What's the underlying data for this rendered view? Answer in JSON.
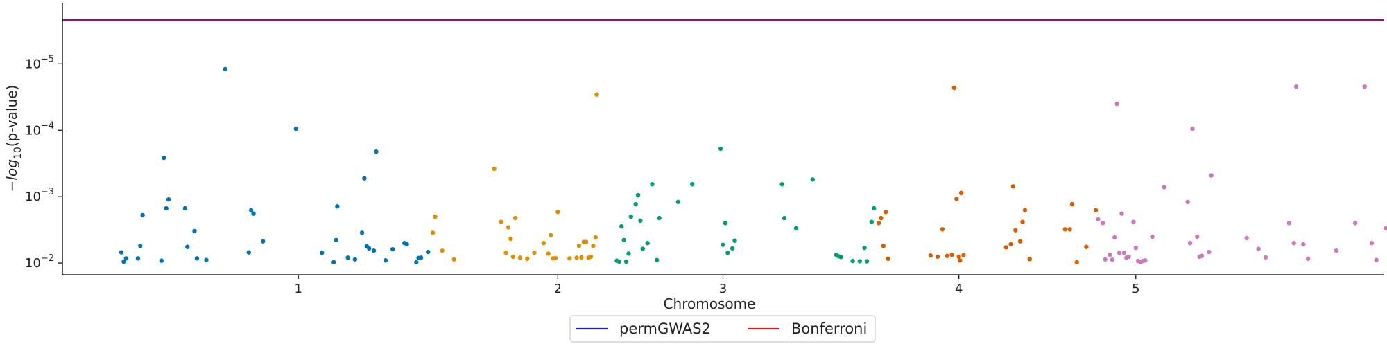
{
  "chart_data": {
    "type": "scatter",
    "title": "",
    "xlabel": "Chromosome",
    "ylabel": {
      "prefix": "−log",
      "subscript": "10",
      "suffix": "(p-value)"
    },
    "y_scale": "log",
    "y_inverted": true,
    "ylim": [
      0.015,
      1.2e-06
    ],
    "yticks": [
      {
        "value": 0.01,
        "base": "10",
        "exp": "−2"
      },
      {
        "value": 0.001,
        "base": "10",
        "exp": "−3"
      },
      {
        "value": 0.0001,
        "base": "10",
        "exp": "−4"
      },
      {
        "value": 1e-05,
        "base": "10",
        "exp": "−5"
      }
    ],
    "xlim": [
      0,
      5.6
    ],
    "xticks": [
      {
        "value": 1.0,
        "label": "1"
      },
      {
        "value": 2.1,
        "label": "2"
      },
      {
        "value": 2.8,
        "label": "3"
      },
      {
        "value": 3.8,
        "label": "4"
      },
      {
        "value": 4.55,
        "label": "5"
      }
    ],
    "grid": false,
    "legend_placement": "bottom-center",
    "thresholds": [
      {
        "name": "permGWAS2",
        "value": 2.2e-06,
        "color": "#1a1adf"
      },
      {
        "name": "Bonferroni",
        "value": 2.2e-06,
        "color": "#e01515"
      }
    ],
    "series": [
      {
        "chromosome": "1",
        "color": "#0173b2",
        "points": [
          [
            0.25,
            0.0069
          ],
          [
            0.26,
            0.0095
          ],
          [
            0.27,
            0.0085
          ],
          [
            0.32,
            0.0085
          ],
          [
            0.33,
            0.0055
          ],
          [
            0.34,
            0.0019
          ],
          [
            0.42,
            0.0092
          ],
          [
            0.43,
            0.00026
          ],
          [
            0.44,
            0.0015
          ],
          [
            0.45,
            0.0011
          ],
          [
            0.52,
            0.0015
          ],
          [
            0.53,
            0.0057
          ],
          [
            0.56,
            0.0033
          ],
          [
            0.57,
            0.0085
          ],
          [
            0.61,
            0.009
          ],
          [
            0.69,
            1.2e-05
          ],
          [
            0.79,
            0.0069
          ],
          [
            0.8,
            0.0016
          ],
          [
            0.81,
            0.0018
          ],
          [
            0.85,
            0.0047
          ],
          [
            0.99,
            9.5e-05
          ],
          [
            1.1,
            0.007
          ],
          [
            1.15,
            0.0097
          ],
          [
            1.16,
            0.0045
          ],
          [
            1.165,
            0.0014
          ],
          [
            1.21,
            0.0083
          ],
          [
            1.24,
            0.0088
          ],
          [
            1.27,
            0.0035
          ],
          [
            1.28,
            0.00053
          ],
          [
            1.29,
            0.0056
          ],
          [
            1.3,
            0.006
          ],
          [
            1.32,
            0.0065
          ],
          [
            1.33,
            0.00021
          ],
          [
            1.37,
            0.0091
          ],
          [
            1.4,
            0.0062
          ],
          [
            1.45,
            0.005
          ],
          [
            1.46,
            0.0052
          ],
          [
            1.5,
            0.0097
          ],
          [
            1.51,
            0.0084
          ],
          [
            1.52,
            0.0083
          ],
          [
            1.55,
            0.0068
          ]
        ]
      },
      {
        "chromosome": "2",
        "color": "#de8f05",
        "points": [
          [
            1.57,
            0.0035
          ],
          [
            1.58,
            0.002
          ],
          [
            1.61,
            0.0065
          ],
          [
            1.66,
            0.0088
          ],
          [
            1.83,
            0.00038
          ],
          [
            1.86,
            0.0024
          ],
          [
            1.88,
            0.007
          ],
          [
            1.89,
            0.0029
          ],
          [
            1.9,
            0.0043
          ],
          [
            1.91,
            0.008
          ],
          [
            1.92,
            0.0021
          ],
          [
            1.94,
            0.0083
          ],
          [
            1.97,
            0.0086
          ],
          [
            2.0,
            0.007
          ],
          [
            2.04,
            0.005
          ],
          [
            2.06,
            0.0072
          ],
          [
            2.07,
            0.0038
          ],
          [
            2.08,
            0.0085
          ],
          [
            2.09,
            0.0084
          ],
          [
            2.1,
            0.0017
          ],
          [
            2.15,
            0.0085
          ],
          [
            2.18,
            0.0083
          ],
          [
            2.19,
            0.0055
          ],
          [
            2.2,
            0.0082
          ],
          [
            2.21,
            0.0048
          ],
          [
            2.22,
            0.0048
          ],
          [
            2.23,
            0.0083
          ],
          [
            2.24,
            0.008
          ],
          [
            2.25,
            0.0055
          ],
          [
            2.26,
            0.0041
          ],
          [
            2.265,
            2.9e-05
          ]
        ]
      },
      {
        "chromosome": "3",
        "color": "#029e73",
        "points": [
          [
            2.35,
            0.0092
          ],
          [
            2.36,
            0.0095
          ],
          [
            2.37,
            0.0028
          ],
          [
            2.38,
            0.0045
          ],
          [
            2.39,
            0.0095
          ],
          [
            2.4,
            0.0072
          ],
          [
            2.41,
            0.002
          ],
          [
            2.43,
            0.0013
          ],
          [
            2.44,
            0.00095
          ],
          [
            2.45,
            0.0023
          ],
          [
            2.46,
            0.0061
          ],
          [
            2.48,
            0.005
          ],
          [
            2.5,
            0.00065
          ],
          [
            2.52,
            0.009
          ],
          [
            2.53,
            0.0021
          ],
          [
            2.61,
            0.0012
          ],
          [
            2.67,
            0.00065
          ],
          [
            2.79,
            0.00019
          ],
          [
            2.8,
            0.0053
          ],
          [
            2.81,
            0.0025
          ],
          [
            2.82,
            0.007
          ],
          [
            2.84,
            0.006
          ],
          [
            2.85,
            0.0046
          ],
          [
            3.05,
            0.00065
          ],
          [
            3.06,
            0.0021
          ],
          [
            3.11,
            0.003
          ],
          [
            3.18,
            0.00055
          ],
          [
            3.28,
            0.0075
          ],
          [
            3.29,
            0.0079
          ],
          [
            3.3,
            0.0081
          ],
          [
            3.35,
            0.0093
          ],
          [
            3.38,
            0.0094
          ],
          [
            3.4,
            0.0059
          ],
          [
            3.41,
            0.0094
          ],
          [
            3.43,
            0.0024
          ],
          [
            3.44,
            0.0015
          ]
        ]
      },
      {
        "chromosome": "4",
        "color": "#d55e00",
        "points": [
          [
            3.46,
            0.0025
          ],
          [
            3.47,
            0.0021
          ],
          [
            3.48,
            0.0055
          ],
          [
            3.49,
            0.0017
          ],
          [
            3.5,
            0.0086
          ],
          [
            3.68,
            0.0077
          ],
          [
            3.71,
            0.008
          ],
          [
            3.73,
            0.0031
          ],
          [
            3.75,
            0.0078
          ],
          [
            3.77,
            0.0075
          ],
          [
            3.78,
            2.3e-05
          ],
          [
            3.79,
            0.00108
          ],
          [
            3.8,
            0.008
          ],
          [
            3.805,
            0.0091
          ],
          [
            3.81,
            0.00088
          ],
          [
            3.82,
            0.0076
          ],
          [
            4.0,
            0.0058
          ],
          [
            4.02,
            0.0052
          ],
          [
            4.03,
            0.0007
          ],
          [
            4.04,
            0.0032
          ],
          [
            4.06,
            0.0047
          ],
          [
            4.07,
            0.0024
          ],
          [
            4.08,
            0.0016
          ],
          [
            4.1,
            0.0087
          ],
          [
            4.25,
            0.0031
          ],
          [
            4.27,
            0.0031
          ],
          [
            4.28,
            0.0013
          ],
          [
            4.3,
            0.0097
          ],
          [
            4.34,
            0.0057
          ],
          [
            4.38,
            0.0016
          ]
        ]
      },
      {
        "chromosome": "5",
        "color": "#cc78bc",
        "points": [
          [
            4.39,
            0.0022
          ],
          [
            4.41,
            0.0025
          ],
          [
            4.42,
            0.0088
          ],
          [
            4.44,
            0.0075
          ],
          [
            4.45,
            0.0089
          ],
          [
            4.46,
            0.0041
          ],
          [
            4.47,
            4e-05
          ],
          [
            4.48,
            0.007
          ],
          [
            4.49,
            0.0018
          ],
          [
            4.5,
            0.007
          ],
          [
            4.51,
            0.0083
          ],
          [
            4.52,
            0.008
          ],
          [
            4.54,
            0.0024
          ],
          [
            4.55,
            0.0059
          ],
          [
            4.56,
            0.0093
          ],
          [
            4.57,
            0.0097
          ],
          [
            4.58,
            0.0093
          ],
          [
            4.59,
            0.0091
          ],
          [
            4.62,
            0.004
          ],
          [
            4.67,
            0.00072
          ],
          [
            4.77,
            0.0012
          ],
          [
            4.78,
            0.005
          ],
          [
            4.79,
            9.5e-05
          ],
          [
            4.81,
            0.004
          ],
          [
            4.82,
            0.008
          ],
          [
            4.83,
            0.0078
          ],
          [
            4.86,
            0.0068
          ],
          [
            4.87,
            0.00048
          ],
          [
            5.02,
            0.0042
          ],
          [
            5.07,
            0.0061
          ],
          [
            5.1,
            0.0082
          ],
          [
            5.2,
            0.0025
          ],
          [
            5.22,
            0.005
          ],
          [
            5.23,
            2.2e-05
          ],
          [
            5.26,
            0.0052
          ],
          [
            5.28,
            0.0086
          ],
          [
            5.4,
            0.0065
          ],
          [
            5.48,
            0.0025
          ],
          [
            5.52,
            2.2e-05
          ],
          [
            5.55,
            0.005
          ],
          [
            5.57,
            0.009
          ],
          [
            5.61,
            0.003
          ],
          [
            5.66,
            0.0032
          ],
          [
            5.7,
            0.005
          ]
        ]
      }
    ]
  },
  "legend": {
    "items": [
      {
        "label": "permGWAS2",
        "color": "#1a1adf"
      },
      {
        "label": "Bonferroni",
        "color": "#e01515"
      }
    ]
  }
}
